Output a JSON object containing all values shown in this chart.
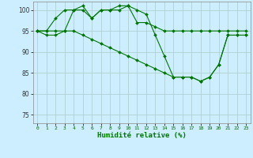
{
  "xlabel": "Humidité relative (%)",
  "xlim": [
    -0.5,
    23.5
  ],
  "ylim": [
    73,
    102
  ],
  "yticks": [
    75,
    80,
    85,
    90,
    95,
    100
  ],
  "xticks": [
    0,
    1,
    2,
    3,
    4,
    5,
    6,
    7,
    8,
    9,
    10,
    11,
    12,
    13,
    14,
    15,
    16,
    17,
    18,
    19,
    20,
    21,
    22,
    23
  ],
  "background_color": "#cceeff",
  "grid_color": "#aacccc",
  "line_color": "#007700",
  "lines": [
    {
      "x": [
        0,
        1,
        2,
        3,
        4,
        5,
        6,
        7,
        8,
        9,
        10,
        11,
        12,
        13,
        14,
        15,
        16,
        17,
        18,
        19,
        20,
        21,
        22,
        23
      ],
      "y": [
        95,
        94,
        94,
        95,
        100,
        101,
        98,
        100,
        100,
        101,
        101,
        100,
        99,
        94,
        89,
        84,
        84,
        84,
        83,
        84,
        87,
        94,
        94,
        94
      ]
    },
    {
      "x": [
        0,
        1,
        2,
        3,
        4,
        5,
        6,
        7,
        8,
        9,
        10,
        11,
        12,
        13,
        14,
        15,
        16,
        17,
        18,
        19,
        20,
        21,
        22,
        23
      ],
      "y": [
        95,
        95,
        98,
        100,
        100,
        100,
        98,
        100,
        100,
        100,
        101,
        97,
        97,
        96,
        95,
        95,
        95,
        95,
        95,
        95,
        95,
        95,
        95,
        95
      ]
    },
    {
      "x": [
        0,
        1,
        2,
        3,
        4,
        5,
        6,
        7,
        8,
        9,
        10,
        11,
        12,
        13,
        14,
        15,
        16,
        17,
        18,
        19,
        20,
        21,
        22,
        23
      ],
      "y": [
        95,
        95,
        95,
        95,
        95,
        94,
        93,
        92,
        91,
        90,
        89,
        88,
        87,
        86,
        85,
        84,
        84,
        84,
        83,
        84,
        87,
        94,
        94,
        94
      ]
    }
  ]
}
